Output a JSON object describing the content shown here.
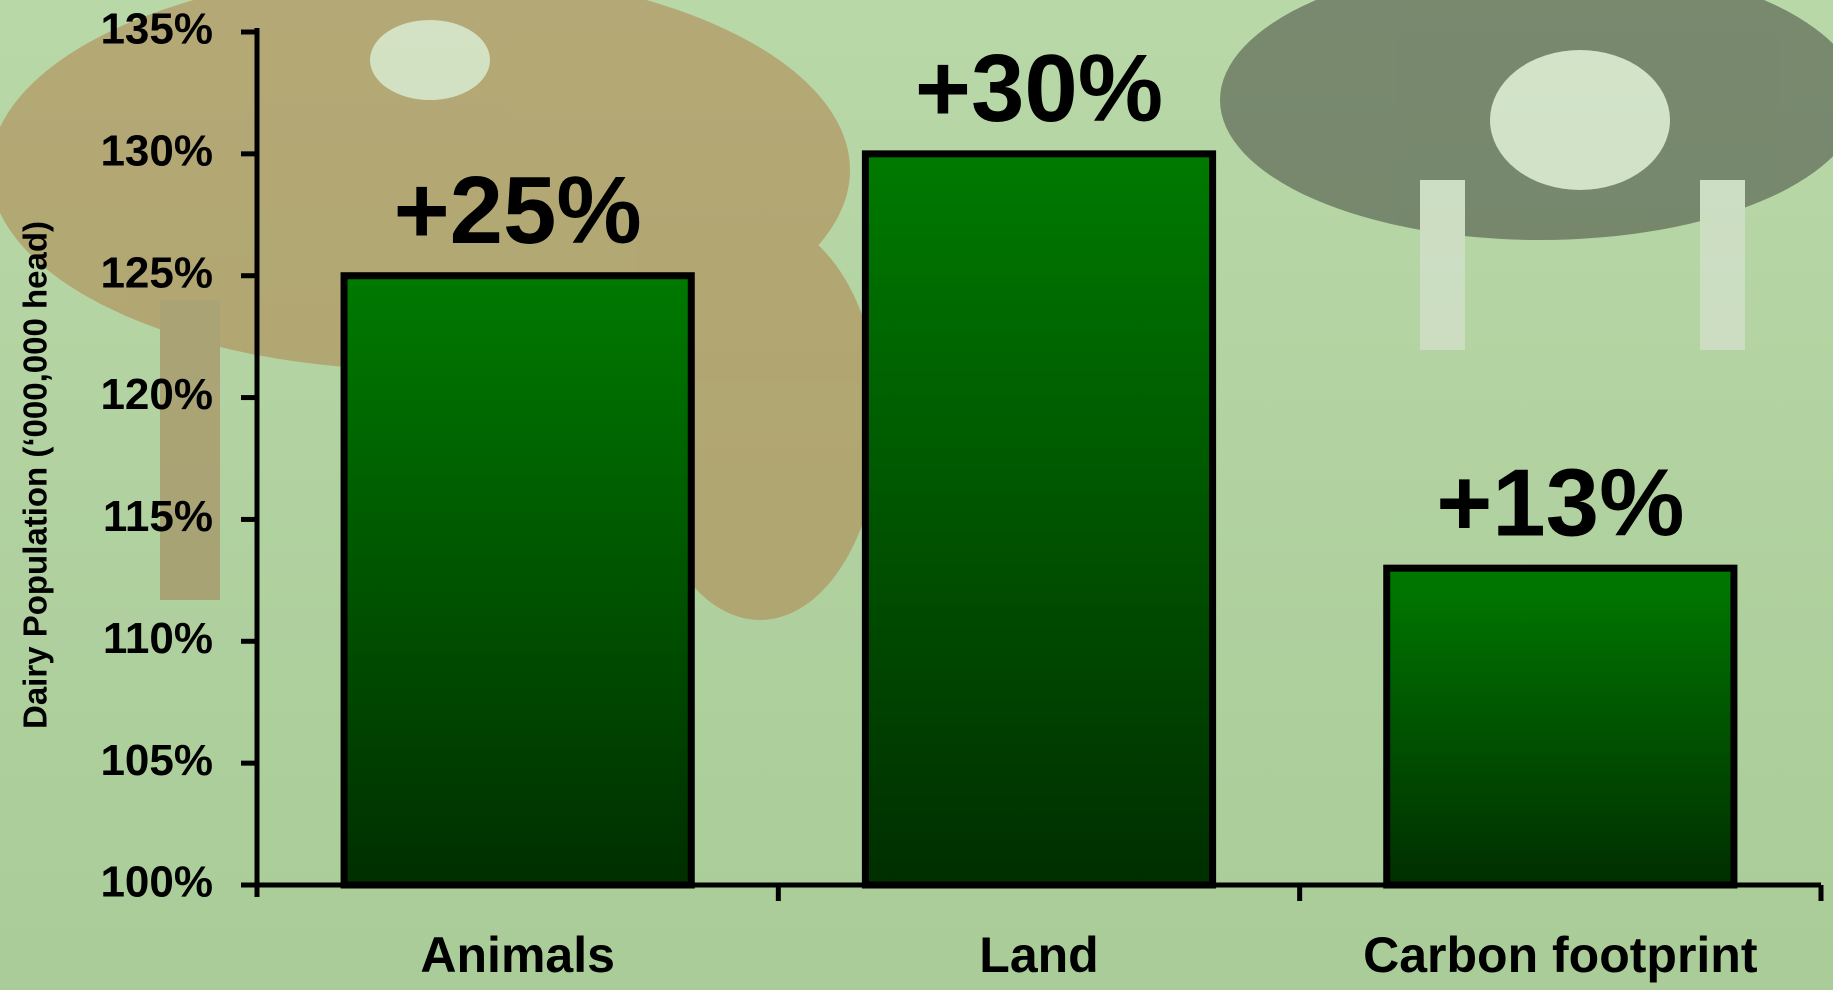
{
  "chart_data": {
    "type": "bar",
    "y_label": "Dairy Population (‘000,000 head)",
    "categories": [
      "Animals",
      "Land",
      "Carbon footprint"
    ],
    "values": [
      125,
      130,
      113
    ],
    "annotations": [
      "+25%",
      "+30%",
      "+13%"
    ],
    "color": "#007a00",
    "ylim": [
      100,
      135
    ],
    "yticks": [
      {
        "value": 100,
        "label": "100%"
      },
      {
        "value": 105,
        "label": "105%"
      },
      {
        "value": 110,
        "label": "110%"
      },
      {
        "value": 115,
        "label": "115%"
      },
      {
        "value": 120,
        "label": "120%"
      },
      {
        "value": 125,
        "label": "125%"
      },
      {
        "value": 130,
        "label": "130%"
      },
      {
        "value": 135,
        "label": "135%"
      }
    ]
  }
}
